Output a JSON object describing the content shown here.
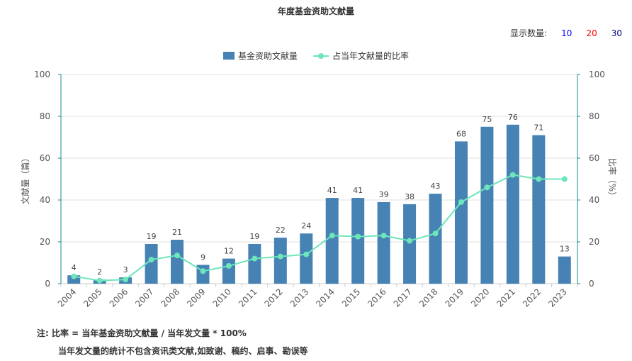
{
  "title": "年度基金资助文献量",
  "display_count": {
    "label": "显示数量:",
    "options": [
      {
        "label": "10",
        "color": "#0000ff"
      },
      {
        "label": "20",
        "color": "#ff0000"
      },
      {
        "label": "30",
        "color": "#000080"
      }
    ]
  },
  "legend": {
    "bar": "基金资助文献量",
    "line": "占当年文献量的比率"
  },
  "notes": {
    "line1": "注:  比率 = 当年基金资助文献量 / 当年发文量 * 100%",
    "line2": "当年发文量的统计不包含资讯类文献,如致谢、稿约、启事、勘误等"
  },
  "chart_data": {
    "type": "bar",
    "title": "年度基金资助文献量",
    "xlabel": "",
    "ylabel": "文献量（篇）",
    "y2label": "比率（%）",
    "ylim": [
      0,
      100
    ],
    "y2lim": [
      0,
      100
    ],
    "yticks": [
      "0",
      "20",
      "40",
      "60",
      "80",
      "100"
    ],
    "y2ticks": [
      "0",
      "20",
      "40",
      "60",
      "80",
      "100"
    ],
    "grid": true,
    "legend_position": "top-center",
    "categories": [
      "2004",
      "2005",
      "2006",
      "2007",
      "2008",
      "2009",
      "2010",
      "2011",
      "2012",
      "2013",
      "2014",
      "2015",
      "2016",
      "2017",
      "2018",
      "2019",
      "2020",
      "2021",
      "2022",
      "2023"
    ],
    "series": [
      {
        "name": "基金资助文献量",
        "type": "bar",
        "color": "#4682b4",
        "values": [
          4,
          2,
          3,
          19,
          21,
          9,
          12,
          19,
          22,
          24,
          41,
          41,
          39,
          38,
          43,
          68,
          75,
          76,
          71,
          13
        ]
      },
      {
        "name": "占当年文献量的比率",
        "type": "line",
        "axis": "right",
        "color": "#6de6b9",
        "values": [
          3.5,
          1.5,
          2,
          11.5,
          13.5,
          6,
          8.5,
          12,
          13,
          14,
          23,
          22.5,
          23,
          20.5,
          24,
          39,
          46,
          52,
          50,
          50
        ]
      }
    ]
  }
}
